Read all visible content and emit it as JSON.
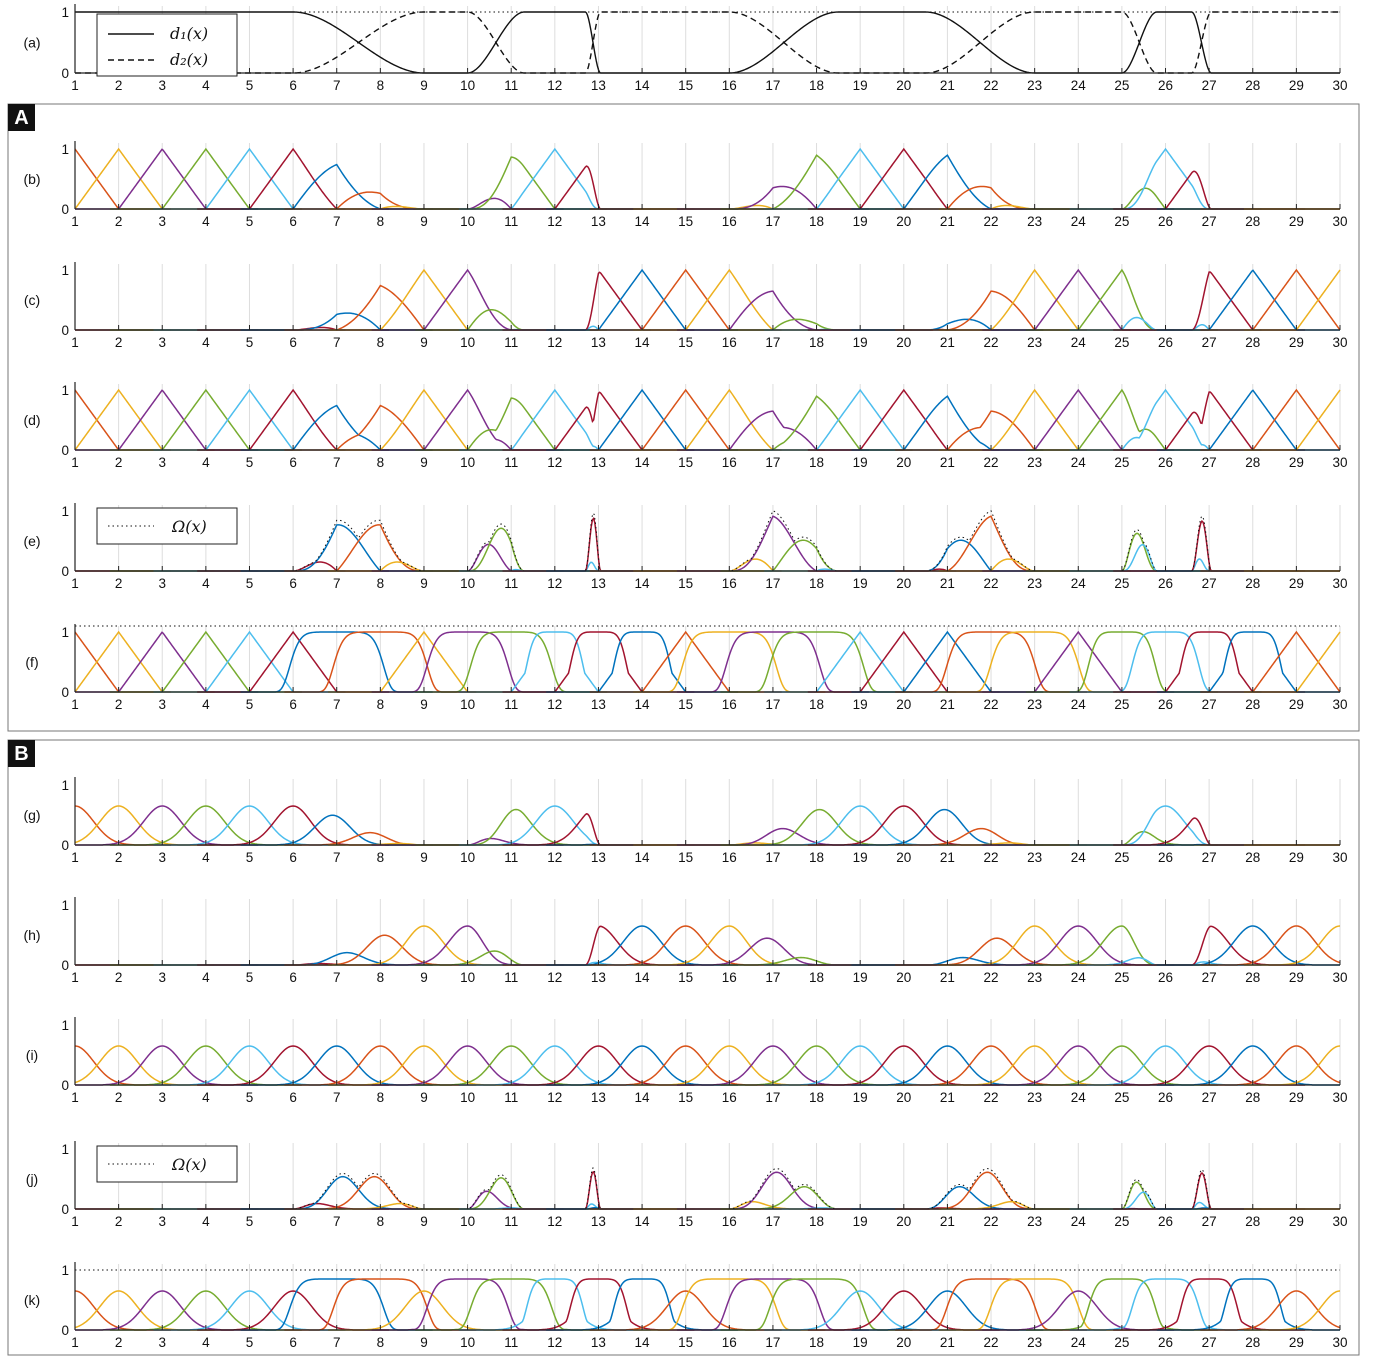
{
  "blocks": [
    {
      "id": "A",
      "label": "A"
    },
    {
      "id": "B",
      "label": "B"
    }
  ],
  "colors": {
    "blue": "#0072BD",
    "orange": "#D95319",
    "yellow": "#EDB120",
    "purple": "#7E2F8E",
    "green": "#77AC30",
    "cyan": "#4DBEEE",
    "red": "#A2142F"
  },
  "chart_data": [
    {
      "panel": "(a)",
      "type": "line",
      "xlim": [
        1,
        30
      ],
      "ylim": [
        0,
        1
      ],
      "yticks": [
        "0",
        "1"
      ],
      "xticks": [
        1,
        2,
        3,
        4,
        5,
        6,
        7,
        8,
        9,
        10,
        11,
        12,
        13,
        14,
        15,
        16,
        17,
        18,
        19,
        20,
        21,
        22,
        23,
        24,
        25,
        26,
        27,
        28,
        29,
        30
      ],
      "legend": [
        "d_1(x)",
        "d_2(x)"
      ],
      "legend_position": "top-left",
      "series": [
        {
          "name": "d_1(x)",
          "style": "solid",
          "description": "1 on [1,6], 0 on [9,10], 1 on [11.3,12.7], 0 on [13,16], 1 on [18.5,20.5], 0 on [23,25], 1 on [25.8,26.6], 0 on [27,30]"
        },
        {
          "name": "d_2(x)",
          "style": "dashed",
          "description": "1 - d_1(x)"
        },
        {
          "name": "sum",
          "style": "dotted",
          "constant": 1
        }
      ]
    },
    {
      "panel": "(b)",
      "type": "line",
      "xlim": [
        1,
        30
      ],
      "ylim": [
        0,
        1
      ],
      "yticks": [
        "0",
        "1"
      ],
      "description": "hat basis functions masked by d_1(x), grid 1..30"
    },
    {
      "panel": "(c)",
      "type": "line",
      "xlim": [
        1,
        30
      ],
      "ylim": [
        0,
        1
      ],
      "yticks": [
        "0",
        "1"
      ],
      "description": "hat basis functions masked by d_2(x), grid 1..30"
    },
    {
      "panel": "(d)",
      "type": "line",
      "xlim": [
        1,
        30
      ],
      "ylim": [
        0,
        1
      ],
      "yticks": [
        "0",
        "1"
      ],
      "description": "max of (b) and (c)"
    },
    {
      "panel": "(e)",
      "type": "line",
      "xlim": [
        1,
        30
      ],
      "ylim": [
        0,
        1
      ],
      "yticks": [
        "0",
        "1"
      ],
      "legend": [
        "Ω(x)"
      ],
      "legend_position": "top-left",
      "description": "overlap functions near transitions x = 7.2, 10.5, 12.8, 17.2, 22.3, 25.5, 27.2"
    },
    {
      "panel": "(f)",
      "type": "line",
      "xlim": [
        1,
        30
      ],
      "ylim": [
        0,
        1.1
      ],
      "yticks": [
        "0",
        "1"
      ],
      "description": "hat functions plus normalised transition functions, dotted total 1.1"
    },
    {
      "panel": "(g)",
      "type": "line",
      "xlim": [
        1,
        30
      ],
      "ylim": [
        0,
        1
      ],
      "yticks": [
        "0",
        "1"
      ],
      "description": "gaussian basis (peak 0.65) masked by d_1(x)"
    },
    {
      "panel": "(h)",
      "type": "line",
      "xlim": [
        1,
        30
      ],
      "ylim": [
        0,
        1
      ],
      "yticks": [
        "0",
        "1"
      ],
      "description": "gaussian basis masked by d_2(x)"
    },
    {
      "panel": "(i)",
      "type": "line",
      "xlim": [
        1,
        30
      ],
      "ylim": [
        0,
        1
      ],
      "yticks": [
        "0",
        "1"
      ],
      "description": "gaussian basis functions, peak 0.65"
    },
    {
      "panel": "(j)",
      "type": "line",
      "xlim": [
        1,
        30
      ],
      "ylim": [
        0,
        1
      ],
      "yticks": [
        "0",
        "1"
      ],
      "legend": [
        "Ω(x)"
      ],
      "legend_position": "top-left",
      "description": "overlap functions for gaussian basis"
    },
    {
      "panel": "(k)",
      "type": "line",
      "xlim": [
        1,
        30
      ],
      "ylim": [
        0,
        1
      ],
      "yticks": [
        "0",
        "1"
      ],
      "description": "gaussian basis plus transition functions, dotted total ~1"
    }
  ]
}
